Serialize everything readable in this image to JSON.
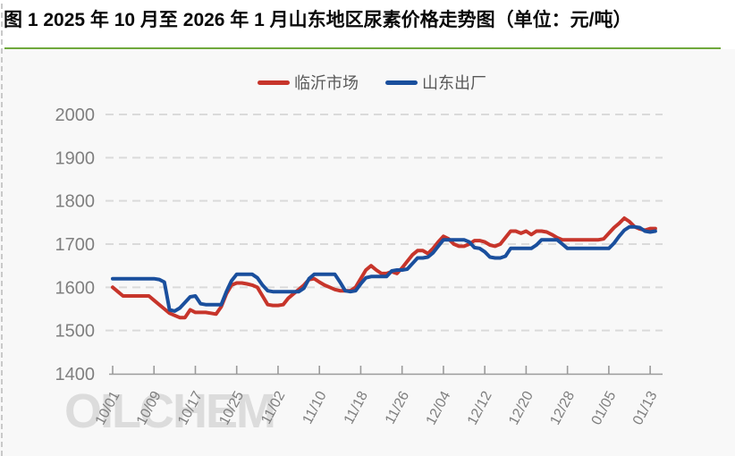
{
  "page": {
    "title": "图 1 2025 年 10 月至 2026 年 1 月山东地区尿素价格走势图（单位：元/吨）"
  },
  "watermark": "OILCHEM",
  "colors": {
    "linyi_red": "#c7352b",
    "shandong_blue": "#1a4f9d",
    "rule_green": "#6fa83c",
    "grid": "#dadada",
    "axis_line": "#9b9b9b",
    "axis_label": "#7f7f7f",
    "legend_text": "#595959",
    "plot_bg": "#f8f8f8",
    "watermark_gray": "#dcdcdc"
  },
  "chart_data": {
    "type": "line",
    "title": "图 1 2025 年 10 月至 2026 年 1 月山东地区尿素价格走势图（单位：元/吨）",
    "xlabel": "",
    "ylabel": "",
    "ylim": [
      1400,
      2000
    ],
    "ytick_step": 100,
    "xtick_every": 8,
    "grid": "dashed-horizontal",
    "legend_position": "top-center",
    "x": [
      "10/01",
      "10/02",
      "10/03",
      "10/04",
      "10/05",
      "10/06",
      "10/07",
      "10/08",
      "10/09",
      "10/10",
      "10/11",
      "10/12",
      "10/13",
      "10/14",
      "10/15",
      "10/16",
      "10/17",
      "10/18",
      "10/19",
      "10/20",
      "10/21",
      "10/22",
      "10/23",
      "10/24",
      "10/25",
      "10/26",
      "10/27",
      "10/28",
      "10/29",
      "10/30",
      "10/31",
      "11/01",
      "11/02",
      "11/03",
      "11/04",
      "11/05",
      "11/06",
      "11/07",
      "11/08",
      "11/09",
      "11/10",
      "11/11",
      "11/12",
      "11/13",
      "11/14",
      "11/15",
      "11/16",
      "11/17",
      "11/18",
      "11/19",
      "11/20",
      "11/21",
      "11/22",
      "11/23",
      "11/24",
      "11/25",
      "11/26",
      "11/27",
      "11/28",
      "11/29",
      "11/30",
      "12/01",
      "12/02",
      "12/03",
      "12/04",
      "12/05",
      "12/06",
      "12/07",
      "12/08",
      "12/09",
      "12/10",
      "12/11",
      "12/12",
      "12/13",
      "12/14",
      "12/15",
      "12/16",
      "12/17",
      "12/18",
      "12/19",
      "12/20",
      "12/21",
      "12/22",
      "12/23",
      "12/24",
      "12/25",
      "12/26",
      "12/27",
      "12/28",
      "12/29",
      "12/30",
      "12/31",
      "01/01",
      "01/02",
      "01/03",
      "01/04",
      "01/05",
      "01/06",
      "01/07",
      "01/08",
      "01/09",
      "01/10",
      "01/11",
      "01/12",
      "01/13",
      "01/14"
    ],
    "series": [
      {
        "name": "临沂市场",
        "color_key": "linyi_red",
        "values": [
          1600,
          1590,
          1580,
          1580,
          1580,
          1580,
          1580,
          1580,
          1570,
          1560,
          1550,
          1540,
          1535,
          1530,
          1530,
          1548,
          1542,
          1542,
          1542,
          1540,
          1538,
          1555,
          1585,
          1605,
          1610,
          1610,
          1608,
          1605,
          1600,
          1580,
          1560,
          1558,
          1558,
          1560,
          1575,
          1585,
          1595,
          1605,
          1618,
          1620,
          1612,
          1605,
          1600,
          1595,
          1592,
          1592,
          1592,
          1600,
          1620,
          1640,
          1650,
          1640,
          1632,
          1632,
          1636,
          1632,
          1645,
          1660,
          1675,
          1685,
          1685,
          1678,
          1690,
          1705,
          1718,
          1712,
          1700,
          1695,
          1695,
          1700,
          1708,
          1708,
          1705,
          1698,
          1695,
          1700,
          1715,
          1730,
          1730,
          1725,
          1730,
          1722,
          1730,
          1730,
          1728,
          1722,
          1715,
          1710,
          1710,
          1710,
          1710,
          1710,
          1710,
          1710,
          1710,
          1712,
          1725,
          1738,
          1748,
          1760,
          1752,
          1740,
          1735,
          1732,
          1736,
          1736
        ]
      },
      {
        "name": "山东出厂",
        "color_key": "shandong_blue",
        "values": [
          1620,
          1620,
          1620,
          1620,
          1620,
          1620,
          1620,
          1620,
          1620,
          1618,
          1612,
          1548,
          1545,
          1552,
          1565,
          1578,
          1580,
          1562,
          1560,
          1560,
          1560,
          1560,
          1590,
          1615,
          1630,
          1630,
          1630,
          1630,
          1622,
          1605,
          1592,
          1590,
          1590,
          1590,
          1590,
          1590,
          1590,
          1598,
          1620,
          1630,
          1630,
          1630,
          1630,
          1630,
          1612,
          1592,
          1590,
          1592,
          1608,
          1622,
          1625,
          1625,
          1625,
          1625,
          1638,
          1640,
          1640,
          1642,
          1655,
          1668,
          1668,
          1670,
          1680,
          1695,
          1710,
          1710,
          1710,
          1710,
          1710,
          1705,
          1692,
          1690,
          1682,
          1670,
          1668,
          1668,
          1672,
          1690,
          1690,
          1690,
          1690,
          1690,
          1698,
          1710,
          1710,
          1710,
          1710,
          1700,
          1690,
          1690,
          1690,
          1690,
          1690,
          1690,
          1690,
          1690,
          1690,
          1702,
          1718,
          1732,
          1740,
          1740,
          1738,
          1730,
          1728,
          1730
        ]
      }
    ],
    "yticks": [
      1400,
      1500,
      1600,
      1700,
      1800,
      1900,
      2000
    ]
  }
}
